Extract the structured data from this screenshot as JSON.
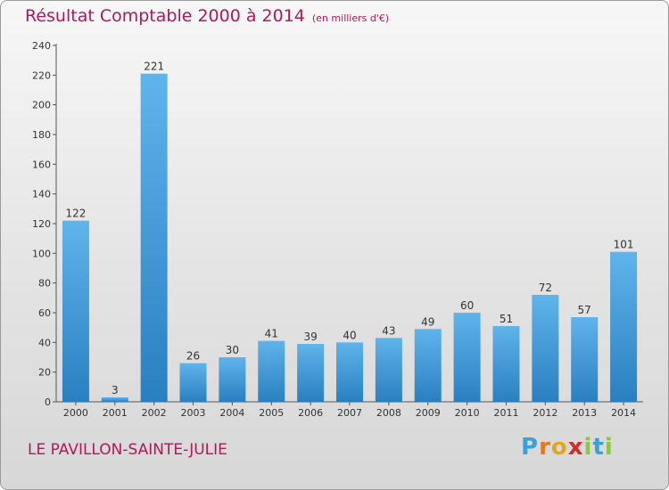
{
  "header": {
    "title": "Résultat Comptable 2000 à 2014",
    "subtitle": "(en milliers d'€)"
  },
  "footer": {
    "town": "LE PAVILLON-SAINTE-JULIE",
    "logo_letters": [
      "P",
      "r",
      "o",
      "x",
      "i",
      "t",
      "i"
    ],
    "logo_colors": [
      "#3aa0dc",
      "#e07a1f",
      "#e0a81f",
      "#d42a2a",
      "#8cc63f",
      "#3aa0dc",
      "#8cc63f"
    ]
  },
  "colors": {
    "title": "#b0185a",
    "bar_light": "#5fb4ec",
    "bar_dark": "#2a7fc0"
  },
  "chart_data": {
    "type": "bar",
    "categories": [
      "2000",
      "2001",
      "2002",
      "2003",
      "2004",
      "2005",
      "2006",
      "2007",
      "2008",
      "2009",
      "2010",
      "2011",
      "2012",
      "2013",
      "2014"
    ],
    "values": [
      122,
      3,
      221,
      26,
      30,
      41,
      39,
      40,
      43,
      49,
      60,
      51,
      72,
      57,
      101
    ],
    "ylim": [
      0,
      240
    ],
    "yticks": [
      0,
      20,
      40,
      60,
      80,
      100,
      120,
      140,
      160,
      180,
      200,
      220,
      240
    ],
    "grid": false,
    "legend": "none"
  }
}
